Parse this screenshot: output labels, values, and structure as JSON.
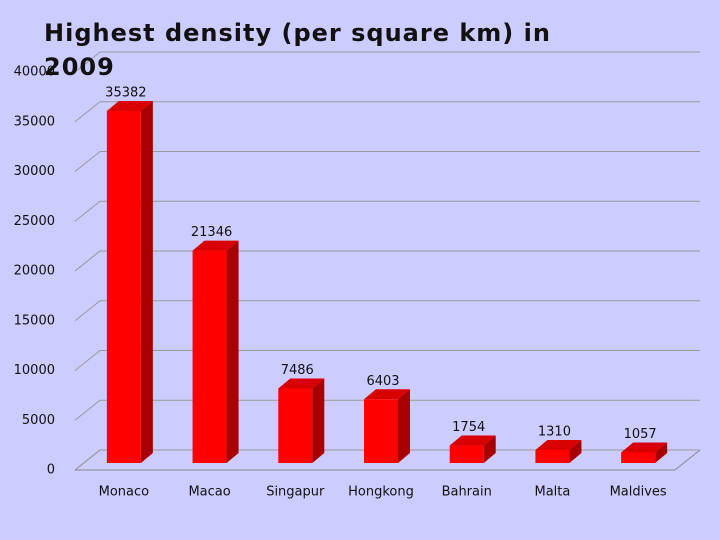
{
  "chart_data": {
    "type": "bar3d",
    "title": "Highest density (per square km) in 2009",
    "categories": [
      "Monaco",
      "Macao",
      "Singapur",
      "Hongkong",
      "Bahrain",
      "Malta",
      "Maldives"
    ],
    "values": [
      35382,
      21346,
      7486,
      6403,
      1754,
      1310,
      1057
    ],
    "color": "#ff0000",
    "ylim": [
      0,
      40000
    ],
    "yticks": [
      0,
      5000,
      10000,
      15000,
      20000,
      25000,
      30000,
      35000,
      40000
    ],
    "grid": true
  }
}
